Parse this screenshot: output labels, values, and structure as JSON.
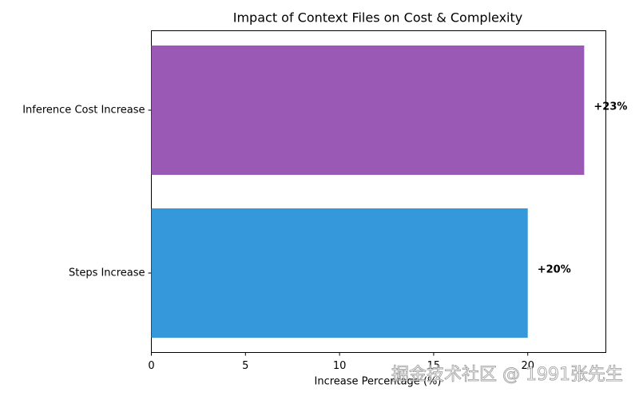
{
  "chart_data": {
    "type": "barh",
    "title": "Impact of Context Files on Cost & Complexity",
    "x_label": "Increase Percentage (%)",
    "categories": [
      "Steps Increase",
      "Inference Cost Increase"
    ],
    "values": [
      20,
      23
    ],
    "value_labels": [
      "+20%",
      "+23%"
    ],
    "colors": [
      "#3498db",
      "#9b59b6"
    ],
    "xlim": [
      0,
      24.15
    ],
    "xticks": [
      0,
      5,
      10,
      15,
      20
    ],
    "grid": false
  },
  "watermark": "掘金技术社区 @ 1991张先生"
}
